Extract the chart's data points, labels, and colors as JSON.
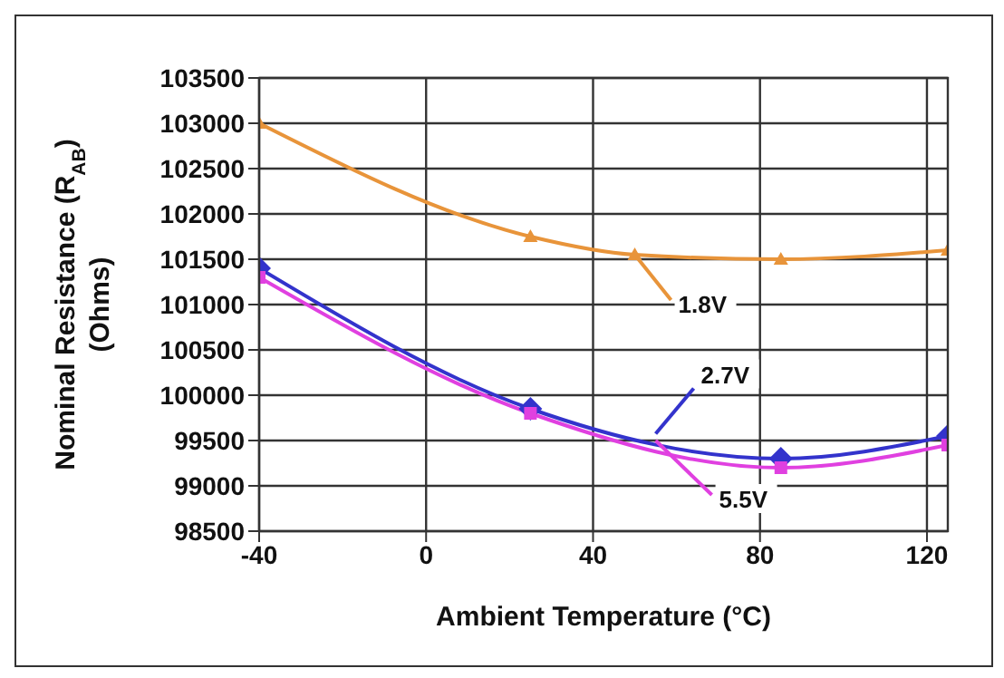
{
  "chart_data": {
    "type": "line",
    "xlabel": "Ambient Temperature  (°C)",
    "ylabel": "Nominal Resistance (R$_{AB}$)\n(Ohms)",
    "xlim": [
      -40,
      125
    ],
    "xticks": [
      -40,
      0,
      40,
      80,
      120
    ],
    "ylim": [
      98500,
      103500
    ],
    "yticks": [
      98500,
      99000,
      99500,
      100000,
      100500,
      101000,
      101500,
      102000,
      102500,
      103000,
      103500
    ],
    "grid": true,
    "series": [
      {
        "name": "1.8V",
        "color": "#e8943a",
        "marker": "triangle",
        "x": [
          -40,
          25,
          50,
          85,
          125
        ],
        "values": [
          103000,
          101750,
          101550,
          101500,
          101600
        ]
      },
      {
        "name": "2.7V",
        "color": "#3333cc",
        "marker": "diamond",
        "x": [
          -40,
          25,
          85,
          125
        ],
        "values": [
          101400,
          99850,
          99300,
          99550
        ]
      },
      {
        "name": "5.5V",
        "color": "#e040e0",
        "marker": "square",
        "x": [
          -40,
          25,
          85,
          125
        ],
        "values": [
          101300,
          99800,
          99200,
          99450
        ]
      }
    ]
  }
}
